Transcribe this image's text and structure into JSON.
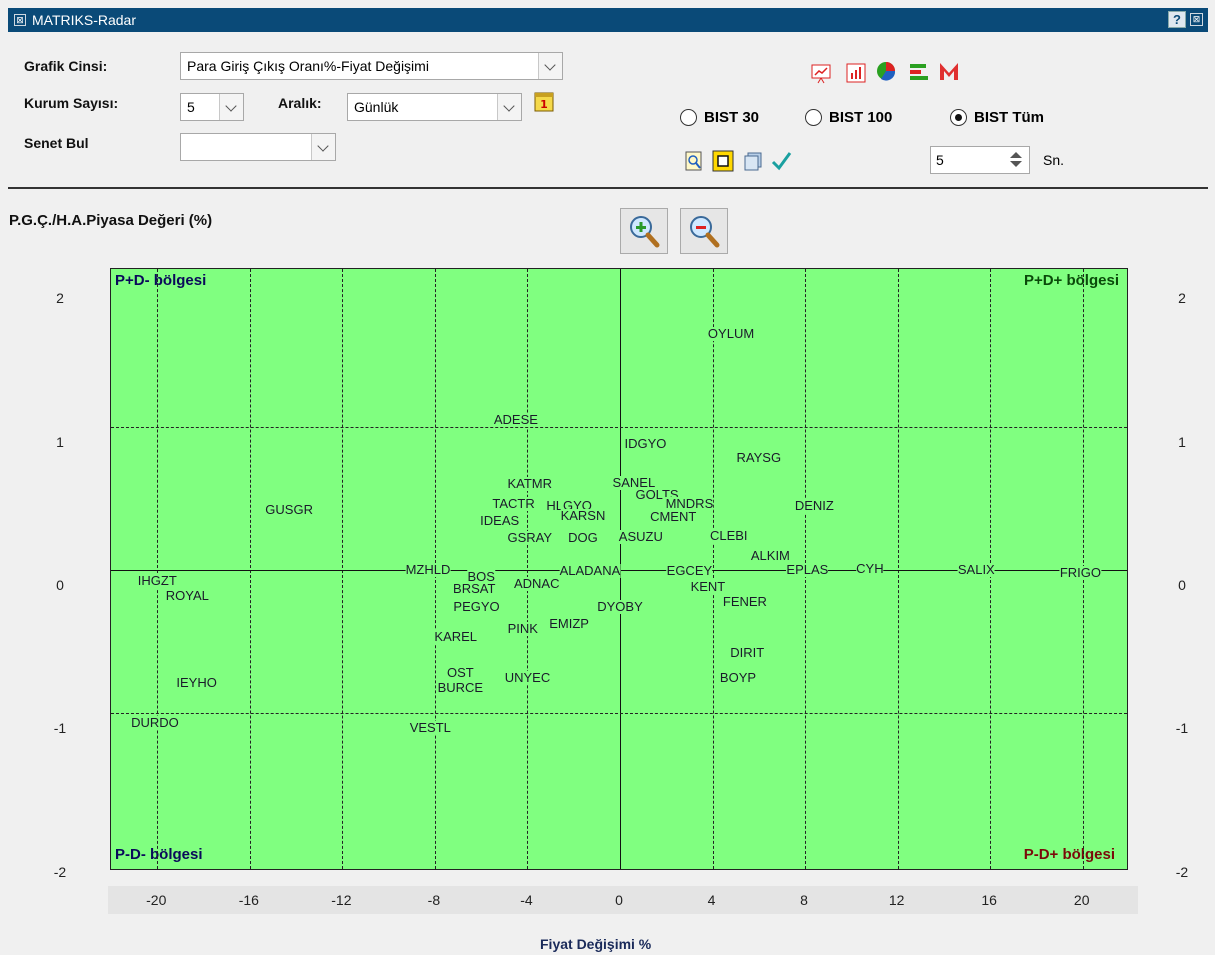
{
  "window": {
    "title": "MATRIKS-Radar",
    "help": "?",
    "sys_icon": "system-menu-icon",
    "close": "close-icon"
  },
  "controls": {
    "grafik_cinsi": {
      "label": "Grafik Cinsi:",
      "value": "Para Giriş Çıkış Oranı%-Fiyat Değişimi"
    },
    "kurum_sayisi": {
      "label": "Kurum Sayısı:",
      "value": "5"
    },
    "aralik": {
      "label": "Aralık:",
      "value": "Günlük"
    },
    "senet_bul": {
      "label": "Senet Bul",
      "value": ""
    },
    "markets": [
      {
        "label": "BIST 30",
        "selected": false
      },
      {
        "label": "BIST 100",
        "selected": false
      },
      {
        "label": "BIST Tüm",
        "selected": true
      }
    ],
    "interval": {
      "value": "5",
      "unit": "Sn."
    }
  },
  "chart_data": {
    "type": "scatter",
    "ylabel": "P.G.Ç./H.A.Piyasa Değeri (%)",
    "xlabel": "Fiyat Değişimi %",
    "xlim": [
      -22,
      22
    ],
    "ylim": [
      -2.1,
      2.1
    ],
    "x_ticks": [
      "-20",
      "-16",
      "-12",
      "-8",
      "-4",
      "0",
      "4",
      "8",
      "12",
      "16",
      "20"
    ],
    "y_ticks": [
      "2",
      "1",
      "0",
      "-1",
      "-2"
    ],
    "quadrants": {
      "tl": "P+D- bölgesi",
      "tr": "P+D+ bölgesi",
      "bl": "P-D- bölgesi",
      "br": "P-D+ bölgesi"
    },
    "points": [
      {
        "name": "OYLUM",
        "x": 4.8,
        "y": 1.65
      },
      {
        "name": "ADESE",
        "x": -4.5,
        "y": 1.05
      },
      {
        "name": "IDGYO",
        "x": 1.1,
        "y": 0.88
      },
      {
        "name": "RAYSG",
        "x": 6.0,
        "y": 0.78
      },
      {
        "name": "KATMR",
        "x": -3.9,
        "y": 0.6
      },
      {
        "name": "SANEL",
        "x": 0.6,
        "y": 0.61
      },
      {
        "name": "GOLTS",
        "x": 1.6,
        "y": 0.52
      },
      {
        "name": "TACTR",
        "x": -4.6,
        "y": 0.46
      },
      {
        "name": "HLGYO",
        "x": -2.2,
        "y": 0.45
      },
      {
        "name": "MNDRS",
        "x": 3.0,
        "y": 0.46
      },
      {
        "name": "DENIZ",
        "x": 8.4,
        "y": 0.45
      },
      {
        "name": "GUSGR",
        "x": -14.3,
        "y": 0.42
      },
      {
        "name": "KARSN",
        "x": -1.6,
        "y": 0.38
      },
      {
        "name": "CMENT",
        "x": 2.3,
        "y": 0.37
      },
      {
        "name": "IDEAS",
        "x": -5.2,
        "y": 0.34
      },
      {
        "name": "GSRAY",
        "x": -3.9,
        "y": 0.22
      },
      {
        "name": "DOG",
        "x": -1.6,
        "y": 0.22
      },
      {
        "name": "ASUZU",
        "x": 0.9,
        "y": 0.23
      },
      {
        "name": "CLEBI",
        "x": 4.7,
        "y": 0.24
      },
      {
        "name": "ALKIM",
        "x": 6.5,
        "y": 0.1
      },
      {
        "name": "MZHLD",
        "x": -8.3,
        "y": 0.0
      },
      {
        "name": "ALADANA",
        "x": -1.3,
        "y": -0.01
      },
      {
        "name": "EGCEY",
        "x": 3.0,
        "y": -0.01
      },
      {
        "name": "EPLAS",
        "x": 8.1,
        "y": 0.0
      },
      {
        "name": "CYH",
        "x": 10.8,
        "y": 0.01
      },
      {
        "name": "SALIX",
        "x": 15.4,
        "y": 0.0
      },
      {
        "name": "FRIGO",
        "x": 19.9,
        "y": -0.02
      },
      {
        "name": "BOS",
        "x": -6.0,
        "y": -0.05
      },
      {
        "name": "ADNAC",
        "x": -3.6,
        "y": -0.1
      },
      {
        "name": "KENT",
        "x": 3.8,
        "y": -0.12
      },
      {
        "name": "IHGZT",
        "x": -20.0,
        "y": -0.08
      },
      {
        "name": "ROYAL",
        "x": -18.7,
        "y": -0.18
      },
      {
        "name": "BRSAT",
        "x": -6.3,
        "y": -0.13
      },
      {
        "name": "FENER",
        "x": 5.4,
        "y": -0.22
      },
      {
        "name": "PEGYO",
        "x": -6.2,
        "y": -0.26
      },
      {
        "name": "DYOBY",
        "x": 0.0,
        "y": -0.26
      },
      {
        "name": "EMIZP",
        "x": -2.2,
        "y": -0.38
      },
      {
        "name": "PINK",
        "x": -4.2,
        "y": -0.41
      },
      {
        "name": "KAREL",
        "x": -7.1,
        "y": -0.47
      },
      {
        "name": "DIRIT",
        "x": 5.5,
        "y": -0.58
      },
      {
        "name": "OST",
        "x": -6.9,
        "y": -0.72
      },
      {
        "name": "UNYEC",
        "x": -4.0,
        "y": -0.75
      },
      {
        "name": "BOYP",
        "x": 5.1,
        "y": -0.75
      },
      {
        "name": "BURCE",
        "x": -6.9,
        "y": -0.82
      },
      {
        "name": "IEYHO",
        "x": -18.3,
        "y": -0.79
      },
      {
        "name": "DURDO",
        "x": -20.1,
        "y": -1.07
      },
      {
        "name": "VESTL",
        "x": -8.2,
        "y": -1.1
      }
    ]
  }
}
